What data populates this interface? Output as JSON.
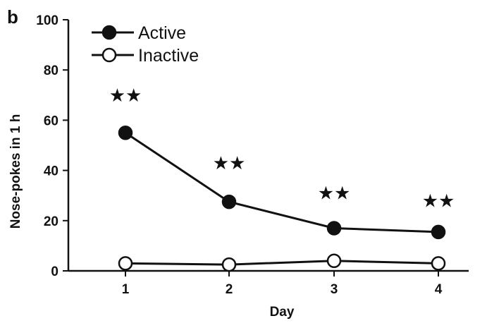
{
  "chart_data": {
    "type": "line",
    "panel_label": "b",
    "title": "",
    "xlabel": "Day",
    "ylabel": "Nose-pokes  in 1 h",
    "x": [
      1,
      2,
      3,
      4
    ],
    "x_tick_labels": [
      "1",
      "2",
      "3",
      "4"
    ],
    "ylim": [
      0,
      100
    ],
    "y_ticks": [
      0,
      20,
      40,
      60,
      80,
      100
    ],
    "y_tick_labels": [
      "0",
      "20",
      "40",
      "60",
      "80",
      "100"
    ],
    "grid": false,
    "legend_position": "top-left",
    "series": [
      {
        "name": "Active",
        "values": [
          55,
          27.5,
          17,
          15.5
        ],
        "marker": "filled-circle",
        "color": "#111111"
      },
      {
        "name": "Inactive",
        "values": [
          3,
          2.5,
          4,
          3
        ],
        "marker": "open-circle",
        "color": "#111111"
      }
    ],
    "annotations": [
      {
        "text": "★★",
        "x": 1,
        "y": 70
      },
      {
        "text": "★★",
        "x": 2,
        "y": 43
      },
      {
        "text": "★★",
        "x": 3,
        "y": 31
      },
      {
        "text": "★★",
        "x": 4,
        "y": 28
      }
    ]
  }
}
